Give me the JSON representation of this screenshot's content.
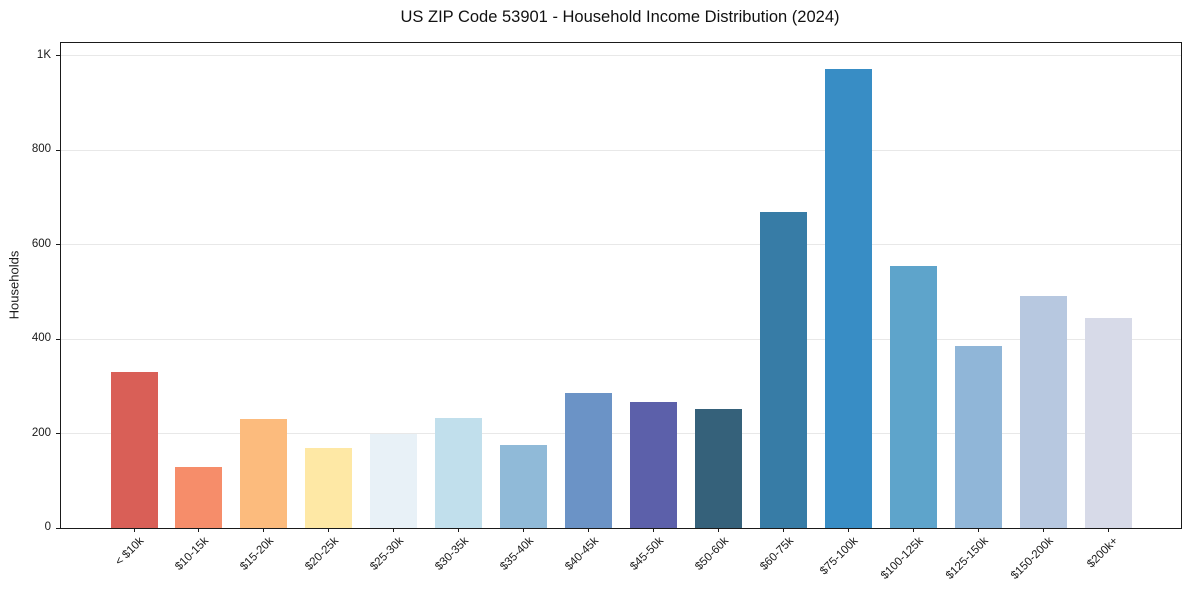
{
  "chart": {
    "title": "US ZIP Code 53901 - Household Income Distribution (2024)",
    "ylabel": "Households"
  },
  "chart_data": {
    "type": "bar",
    "title": "US ZIP Code 53901 - Household Income Distribution (2024)",
    "xlabel": "",
    "ylabel": "Households",
    "ylim": [
      0,
      1027
    ],
    "grid": "horizontal-only",
    "legend": "none",
    "categories": [
      "< $10k",
      "$10-15k",
      "$15-20k",
      "$20-25k",
      "$25-30k",
      "$30-35k",
      "$35-40k",
      "$40-45k",
      "$45-50k",
      "$50-60k",
      "$60-75k",
      "$75-100k",
      "$100-125k",
      "$125-150k",
      "$150-200k",
      "$200k+"
    ],
    "values": [
      330,
      130,
      230,
      170,
      200,
      233,
      176,
      286,
      267,
      252,
      670,
      971,
      555,
      386,
      491,
      445
    ],
    "bar_colors": [
      "#d95f57",
      "#f68d6a",
      "#fcbb7d",
      "#fee8a5",
      "#e8f1f7",
      "#c1dfec",
      "#90bad8",
      "#6b93c6",
      "#5c60aa",
      "#35617a",
      "#377ca6",
      "#388dc5",
      "#5ea4cb",
      "#90b6d8",
      "#b7c8e0",
      "#d7dae8"
    ],
    "yticks": [
      {
        "value": 0,
        "label": "0"
      },
      {
        "value": 200,
        "label": "200"
      },
      {
        "value": 400,
        "label": "400"
      },
      {
        "value": 600,
        "label": "600"
      },
      {
        "value": 800,
        "label": "800"
      },
      {
        "value": 1000,
        "label": "1K"
      }
    ]
  },
  "colors": {
    "background": "#ffffff",
    "grid": "#e8e8e8",
    "spine": "#1a1a1a",
    "text": "#1a1a1a"
  }
}
